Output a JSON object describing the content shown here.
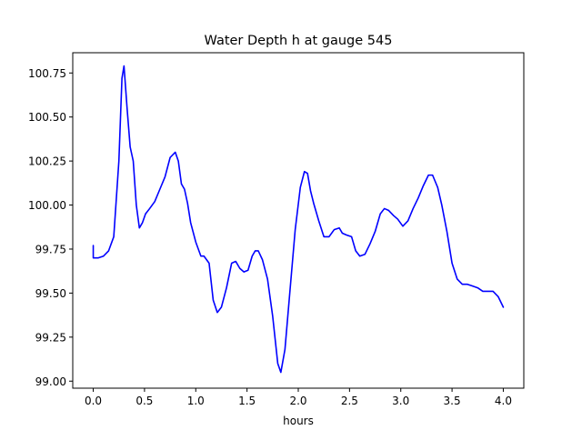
{
  "chart_data": {
    "type": "line",
    "title": "Water Depth h at gauge 545",
    "xlabel": "hours",
    "ylabel": "",
    "xlim": [
      -0.2,
      4.2
    ],
    "ylim": [
      98.96,
      100.865
    ],
    "xticks": [
      0.0,
      0.5,
      1.0,
      1.5,
      2.0,
      2.5,
      3.0,
      3.5,
      4.0
    ],
    "xtick_labels": [
      "0.0",
      "0.5",
      "1.0",
      "1.5",
      "2.0",
      "2.5",
      "3.0",
      "3.5",
      "4.0"
    ],
    "yticks": [
      99.0,
      99.25,
      99.5,
      99.75,
      100.0,
      100.25,
      100.5,
      100.75
    ],
    "ytick_labels": [
      "99.00",
      "99.25",
      "99.50",
      "99.75",
      "100.00",
      "100.25",
      "100.50",
      "100.75"
    ],
    "grid": false,
    "line_color": "#0000ff",
    "series": [
      {
        "name": "",
        "x": [
          0.0,
          0.0,
          0.05,
          0.1,
          0.15,
          0.2,
          0.25,
          0.28,
          0.3,
          0.33,
          0.36,
          0.39,
          0.42,
          0.45,
          0.48,
          0.51,
          0.55,
          0.6,
          0.65,
          0.7,
          0.75,
          0.8,
          0.83,
          0.86,
          0.89,
          0.92,
          0.95,
          1.0,
          1.05,
          1.08,
          1.13,
          1.17,
          1.21,
          1.25,
          1.3,
          1.35,
          1.39,
          1.43,
          1.47,
          1.51,
          1.55,
          1.58,
          1.61,
          1.65,
          1.7,
          1.75,
          1.8,
          1.83,
          1.87,
          1.92,
          1.97,
          2.02,
          2.06,
          2.09,
          2.12,
          2.15,
          2.2,
          2.25,
          2.3,
          2.35,
          2.4,
          2.43,
          2.47,
          2.52,
          2.56,
          2.6,
          2.65,
          2.7,
          2.75,
          2.8,
          2.84,
          2.88,
          2.93,
          2.97,
          3.02,
          3.07,
          3.12,
          3.17,
          3.22,
          3.27,
          3.31,
          3.36,
          3.4,
          3.45,
          3.5,
          3.55,
          3.6,
          3.65,
          3.7,
          3.75,
          3.8,
          3.85,
          3.9,
          3.95,
          4.0
        ],
        "y": [
          99.77,
          99.7,
          99.7,
          99.71,
          99.74,
          99.82,
          100.25,
          100.72,
          100.79,
          100.55,
          100.33,
          100.25,
          100.0,
          99.87,
          99.9,
          99.95,
          99.98,
          100.02,
          100.09,
          100.16,
          100.27,
          100.3,
          100.25,
          100.12,
          100.09,
          100.01,
          99.9,
          99.79,
          99.71,
          99.71,
          99.67,
          99.46,
          99.39,
          99.42,
          99.53,
          99.67,
          99.68,
          99.64,
          99.62,
          99.63,
          99.71,
          99.74,
          99.74,
          99.69,
          99.58,
          99.37,
          99.1,
          99.05,
          99.18,
          99.52,
          99.86,
          100.1,
          100.19,
          100.18,
          100.08,
          100.01,
          99.91,
          99.82,
          99.82,
          99.86,
          99.87,
          99.84,
          99.83,
          99.82,
          99.74,
          99.71,
          99.72,
          99.78,
          99.85,
          99.95,
          99.98,
          99.97,
          99.94,
          99.92,
          99.88,
          99.91,
          99.98,
          100.04,
          100.11,
          100.17,
          100.17,
          100.1,
          100.0,
          99.85,
          99.67,
          99.58,
          99.55,
          99.55,
          99.54,
          99.53,
          99.51,
          99.51,
          99.51,
          99.48,
          99.42
        ]
      }
    ]
  }
}
